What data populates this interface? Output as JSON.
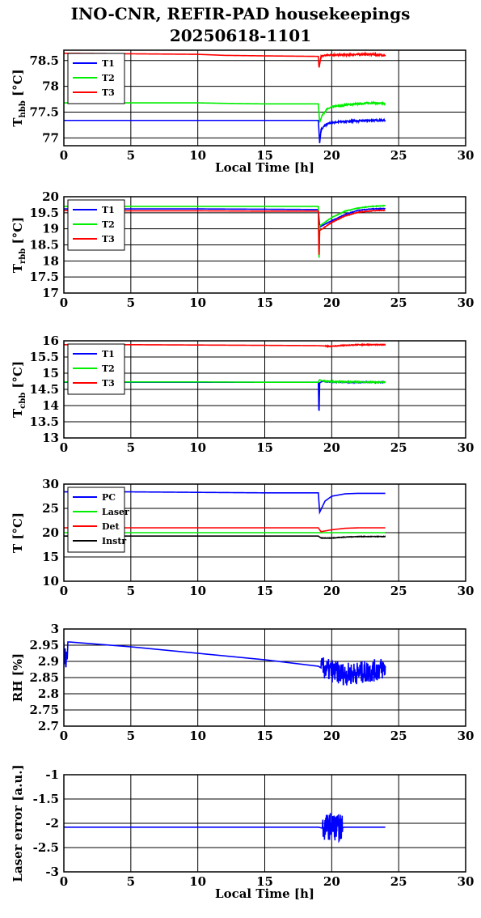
{
  "title": "INO-CNR, REFIR-PAD housekeepings",
  "subtitle": "20250618-1101",
  "chart_data": [
    {
      "type": "line",
      "ylabel_main": "T",
      "ylabel_sub": "hbb",
      "ylabel_unit": " [°C]",
      "xlabel": "Local Time [h]",
      "xlim": [
        0,
        30
      ],
      "ylim": [
        76.85,
        78.7
      ],
      "xticks": [
        0,
        5,
        10,
        15,
        20,
        25,
        30
      ],
      "yticks": [
        77,
        77.5,
        78,
        78.5
      ],
      "ytick_labels": [
        "77",
        "77.5",
        "78",
        "78.5"
      ],
      "grid": true,
      "legend_position": "top-left",
      "series": [
        {
          "name": "T1",
          "color": "#0000ff",
          "x": [
            0,
            5,
            10,
            12,
            15,
            19,
            19.1,
            19.2,
            19.5,
            20,
            21,
            22,
            23,
            24
          ],
          "y": [
            77.34,
            77.34,
            77.34,
            77.34,
            77.34,
            77.34,
            76.9,
            77.15,
            77.25,
            77.3,
            77.32,
            77.33,
            77.34,
            77.34
          ],
          "noise": 0.015,
          "noise_from": 19.2
        },
        {
          "name": "T2",
          "color": "#00ee00",
          "x": [
            0,
            5,
            10,
            12,
            15,
            19,
            19.1,
            19.3,
            19.6,
            20,
            21,
            22,
            23,
            24
          ],
          "y": [
            77.68,
            77.68,
            77.68,
            77.67,
            77.66,
            77.66,
            77.3,
            77.45,
            77.55,
            77.6,
            77.64,
            77.66,
            77.68,
            77.66
          ],
          "noise": 0.015,
          "noise_from": 19.3
        },
        {
          "name": "T3",
          "color": "#ff0000",
          "x": [
            0,
            5,
            10,
            12,
            15,
            19,
            19.05,
            19.2,
            19.5,
            20,
            21,
            22,
            23,
            24
          ],
          "y": [
            78.64,
            78.63,
            78.62,
            78.6,
            78.59,
            78.58,
            78.35,
            78.58,
            78.6,
            78.61,
            78.61,
            78.62,
            78.62,
            78.6
          ],
          "noise": 0.015,
          "noise_from": 19.2
        }
      ]
    },
    {
      "type": "line",
      "ylabel_main": "T",
      "ylabel_sub": "rbb",
      "ylabel_unit": " [°C]",
      "xlabel": "",
      "xlim": [
        0,
        30
      ],
      "ylim": [
        17,
        20
      ],
      "xticks": [
        0,
        5,
        10,
        15,
        20,
        25,
        30
      ],
      "yticks": [
        17,
        17.5,
        18,
        18.5,
        19,
        19.5,
        20
      ],
      "ytick_labels": [
        "17",
        "17.5",
        "18",
        "18.5",
        "19",
        "19.5",
        "20"
      ],
      "grid": true,
      "legend_position": "top-left",
      "series": [
        {
          "name": "T1",
          "color": "#0000ff",
          "x": [
            0,
            5,
            10,
            15,
            19,
            19.1,
            19.3,
            20,
            21,
            22,
            23,
            24
          ],
          "y": [
            19.62,
            19.62,
            19.62,
            19.61,
            19.6,
            19.05,
            19.1,
            19.25,
            19.45,
            19.58,
            19.62,
            19.63
          ],
          "noise": 0.008,
          "noise_from": 19.3
        },
        {
          "name": "T2",
          "color": "#00ee00",
          "x": [
            0,
            5,
            10,
            15,
            19,
            19.05,
            19.1,
            19.3,
            20,
            21,
            22,
            23,
            24
          ],
          "y": [
            19.7,
            19.7,
            19.7,
            19.7,
            19.7,
            17.85,
            19.1,
            19.15,
            19.35,
            19.55,
            19.65,
            19.7,
            19.72
          ],
          "noise": 0.008,
          "noise_from": 19.3
        },
        {
          "name": "T3",
          "color": "#ff0000",
          "x": [
            0,
            5,
            10,
            15,
            19,
            19.05,
            19.1,
            19.3,
            20,
            21,
            22,
            23,
            24
          ],
          "y": [
            19.57,
            19.56,
            19.56,
            19.55,
            19.55,
            18.0,
            18.95,
            19.0,
            19.2,
            19.4,
            19.52,
            19.56,
            19.58
          ],
          "noise": 0.008,
          "noise_from": 19.3
        }
      ]
    },
    {
      "type": "line",
      "ylabel_main": "T",
      "ylabel_sub": "cbb",
      "ylabel_unit": " [°C]",
      "xlabel": "",
      "xlim": [
        0,
        30
      ],
      "ylim": [
        13,
        16
      ],
      "xticks": [
        0,
        5,
        10,
        15,
        20,
        25,
        30
      ],
      "yticks": [
        13,
        13.5,
        14,
        14.5,
        15,
        15.5,
        16
      ],
      "ytick_labels": [
        "13",
        "13.5",
        "14",
        "14.5",
        "15",
        "15.5",
        "16"
      ],
      "grid": true,
      "legend_position": "top-left",
      "series": [
        {
          "name": "T1",
          "color": "#0000ff",
          "x": [
            0,
            5,
            10,
            15,
            19,
            19.05,
            19.1,
            19.3,
            20,
            22,
            24
          ],
          "y": [
            14.72,
            14.72,
            14.72,
            14.72,
            14.72,
            13.65,
            14.7,
            14.75,
            14.73,
            14.72,
            14.72
          ],
          "noise": 0.015,
          "noise_from": 19.3
        },
        {
          "name": "T2",
          "color": "#00ee00",
          "x": [
            0,
            5,
            10,
            15,
            19,
            19.1,
            19.3,
            20,
            22,
            24
          ],
          "y": [
            14.73,
            14.73,
            14.73,
            14.72,
            14.72,
            14.8,
            14.76,
            14.74,
            14.73,
            14.72
          ],
          "noise": 0.015,
          "noise_from": 19.3
        },
        {
          "name": "T3",
          "color": "#ff0000",
          "x": [
            0,
            5,
            10,
            15,
            19,
            19.5,
            20,
            21,
            22,
            24
          ],
          "y": [
            15.88,
            15.88,
            15.87,
            15.86,
            15.85,
            15.84,
            15.83,
            15.86,
            15.88,
            15.88
          ],
          "noise": 0.012,
          "noise_from": 19.5
        }
      ]
    },
    {
      "type": "line",
      "ylabel_main": "T [°C]",
      "ylabel_sub": "",
      "ylabel_unit": "",
      "xlabel": "",
      "xlim": [
        0,
        30
      ],
      "ylim": [
        10,
        30
      ],
      "xticks": [
        0,
        5,
        10,
        15,
        20,
        25,
        30
      ],
      "yticks": [
        10,
        15,
        20,
        25,
        30
      ],
      "ytick_labels": [
        "10",
        "15",
        "20",
        "25",
        "30"
      ],
      "grid": true,
      "legend_position": "top-left",
      "series": [
        {
          "name": "PC",
          "color": "#0000ff",
          "x": [
            0,
            5,
            10,
            15,
            19,
            19.1,
            19.5,
            20,
            21,
            22,
            24
          ],
          "y": [
            28.4,
            28.4,
            28.3,
            28.2,
            28.2,
            24.2,
            26.5,
            27.5,
            28.0,
            28.1,
            28.1
          ],
          "noise": 0,
          "noise_from": 99
        },
        {
          "name": "Laser",
          "color": "#00ee00",
          "x": [
            0,
            5,
            10,
            15,
            19,
            20,
            22,
            24
          ],
          "y": [
            20.0,
            20.0,
            20.0,
            20.0,
            20.0,
            20.0,
            20.0,
            20.0
          ],
          "noise": 0,
          "noise_from": 99
        },
        {
          "name": "Det",
          "color": "#ff0000",
          "x": [
            0,
            5,
            10,
            15,
            19,
            19.2,
            20,
            21,
            22,
            24
          ],
          "y": [
            21.0,
            21.0,
            21.0,
            21.0,
            21.0,
            20.2,
            20.6,
            20.9,
            21.0,
            21.0
          ],
          "noise": 0,
          "noise_from": 99
        },
        {
          "name": "Instr",
          "color": "#000000",
          "x": [
            0,
            5,
            10,
            15,
            19,
            19.2,
            20,
            21,
            22,
            24
          ],
          "y": [
            19.3,
            19.3,
            19.3,
            19.3,
            19.3,
            18.9,
            18.9,
            19.1,
            19.2,
            19.2
          ],
          "noise": 0.05,
          "noise_from": 19.2
        }
      ]
    },
    {
      "type": "line",
      "ylabel_main": "RH [%]",
      "ylabel_sub": "",
      "ylabel_unit": "",
      "xlabel": "",
      "xlim": [
        0,
        30
      ],
      "ylim": [
        2.7,
        3.0
      ],
      "xticks": [
        0,
        5,
        10,
        15,
        20,
        25,
        30
      ],
      "yticks": [
        2.7,
        2.75,
        2.8,
        2.85,
        2.9,
        2.95,
        3.0
      ],
      "ytick_labels": [
        "2.7",
        "2.75",
        "2.8",
        "2.85",
        "2.9",
        "2.95",
        "3"
      ],
      "grid": true,
      "legend_position": "none",
      "series": [
        {
          "name": "",
          "color": "#0000ff",
          "x": [
            0,
            0.05,
            0.1,
            0.15,
            0.2,
            0.25,
            0.3,
            0.4,
            5,
            10,
            15,
            19,
            19.2,
            20,
            21,
            22,
            23,
            24
          ],
          "y": [
            2.96,
            2.88,
            2.94,
            2.87,
            2.93,
            2.9,
            2.96,
            2.96,
            2.945,
            2.925,
            2.905,
            2.885,
            2.88,
            2.87,
            2.86,
            2.865,
            2.87,
            2.88
          ],
          "noise": 0.035,
          "noise_from": 19.2
        }
      ]
    },
    {
      "type": "line",
      "ylabel_main": "Laser error [a.u.]",
      "ylabel_sub": "",
      "ylabel_unit": "",
      "xlabel": "Local Time [h]",
      "xlim": [
        0,
        30
      ],
      "ylim": [
        -3,
        -1
      ],
      "xticks": [
        0,
        5,
        10,
        15,
        20,
        25,
        30
      ],
      "yticks": [
        -3,
        -2.5,
        -2,
        -1.5,
        -1
      ],
      "ytick_labels": [
        "-3",
        "-2.5",
        "-2",
        "-1.5",
        "-1"
      ],
      "grid": true,
      "legend_position": "none",
      "series": [
        {
          "name": "",
          "color": "#0000ff",
          "x": [
            0,
            5,
            10,
            15,
            19,
            19.3,
            20,
            20.5,
            21,
            22,
            24
          ],
          "y": [
            -2.08,
            -2.08,
            -2.08,
            -2.08,
            -2.08,
            -2.1,
            -2.05,
            -2.1,
            -2.08,
            -2.08,
            -2.08
          ],
          "noise": 0.28,
          "noise_from": 19.3,
          "noise_to": 20.8
        }
      ]
    }
  ]
}
